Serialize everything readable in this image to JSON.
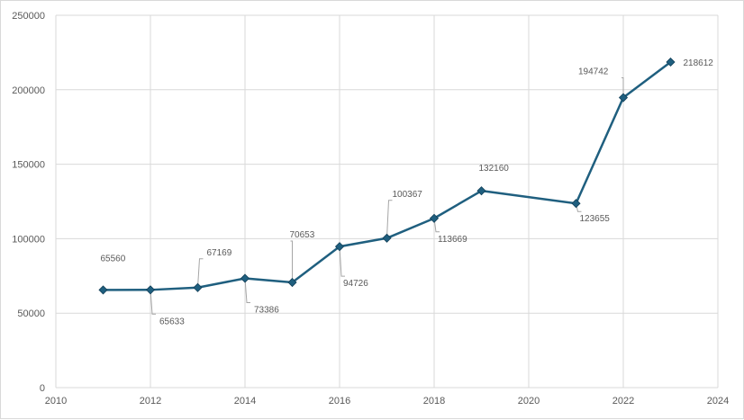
{
  "chart_data": {
    "type": "scatter",
    "mode": "lines+markers",
    "title": "",
    "xlabel": "",
    "ylabel": "",
    "xlim": [
      2010,
      2024
    ],
    "ylim": [
      0,
      250000
    ],
    "x_ticks": [
      2010,
      2012,
      2014,
      2016,
      2018,
      2020,
      2022,
      2024
    ],
    "y_ticks": [
      0,
      50000,
      100000,
      150000,
      200000,
      250000
    ],
    "grid": true,
    "legend": "none",
    "line_color": "#1f5f7f",
    "marker": "diamond",
    "series": [
      {
        "x": [
          2011,
          2012,
          2013,
          2014,
          2015,
          2016,
          2017,
          2018,
          2019,
          2021,
          2022,
          2023
        ],
        "y": [
          65560,
          65633,
          67169,
          73386,
          70653,
          94726,
          100367,
          113669,
          132160,
          123655,
          194742,
          218612
        ],
        "labels": [
          "65560",
          "65633",
          "67169",
          "73386",
          "70653",
          "94726",
          "100367",
          "113669",
          "132160",
          "123655",
          "194742",
          "218612"
        ]
      }
    ]
  }
}
